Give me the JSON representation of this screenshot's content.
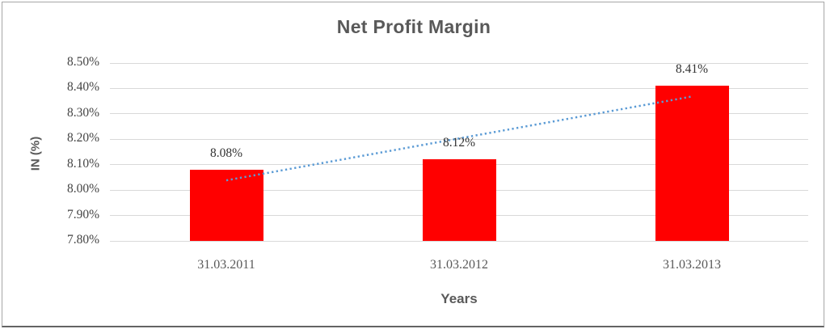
{
  "chart_data": {
    "type": "bar",
    "title": "Net Profit Margin",
    "xlabel": "Years",
    "ylabel": "IN (%)",
    "categories": [
      "31.03.2011",
      "31.03.2012",
      "31.03.2013"
    ],
    "series": [
      {
        "name": "Net Profit Margin",
        "values": [
          8.08,
          8.12,
          8.41
        ]
      }
    ],
    "data_labels": [
      "8.08%",
      "8.12%",
      "8.41%"
    ],
    "ylim": [
      7.8,
      8.5
    ],
    "ytick_step": 0.1,
    "ytick_labels": [
      "8.50%",
      "8.40%",
      "8.30%",
      "8.20%",
      "8.10%",
      "8.00%",
      "7.90%",
      "7.80%"
    ],
    "grid": true,
    "legend_position": "none",
    "bar_color": "#ff0000",
    "trendline": {
      "type": "linear",
      "style": "dotted",
      "color": "#5b9bd5"
    },
    "colors": {
      "title": "#595959",
      "axis_title": "#595959",
      "y_tick_label": "#454545",
      "x_tick_label": "#595959",
      "data_label": "#323232",
      "gridline": "#d9d9d9",
      "frame_border": "#a6a6a6"
    }
  }
}
